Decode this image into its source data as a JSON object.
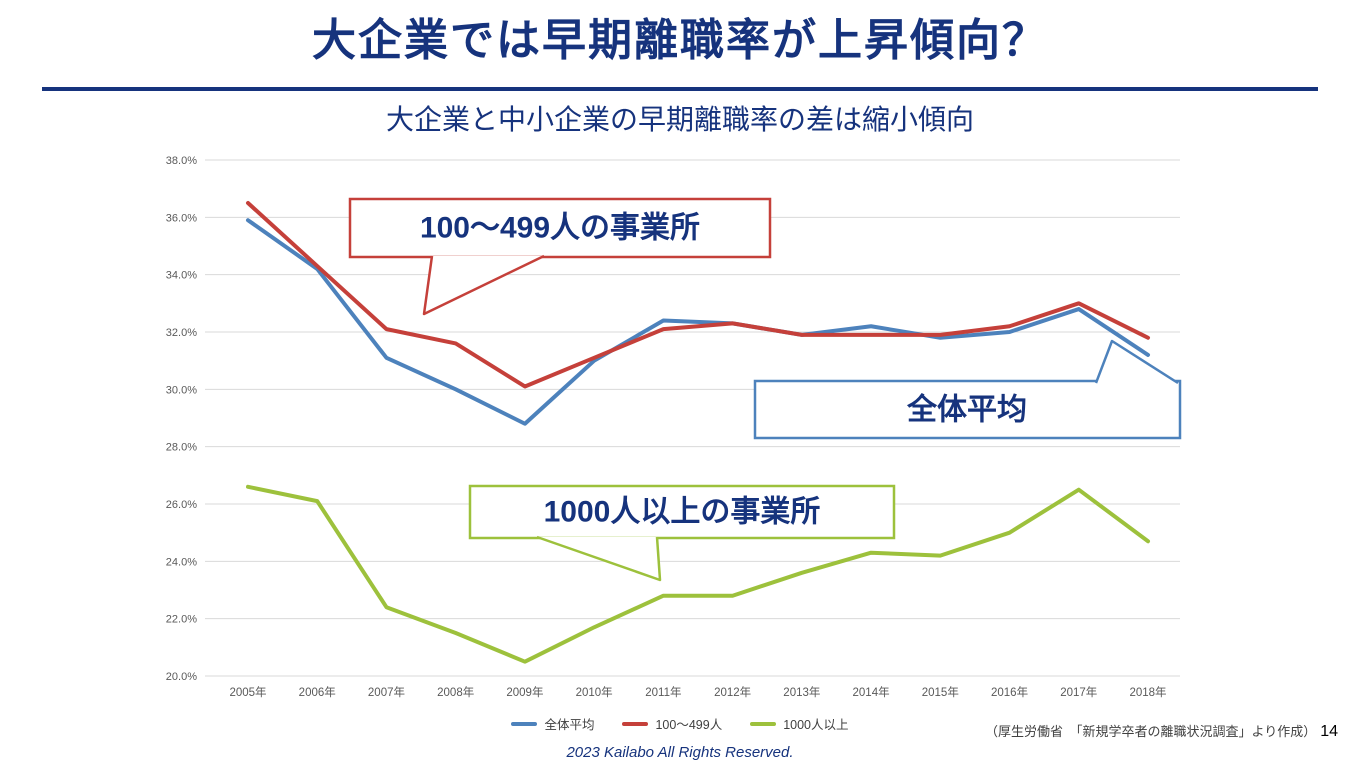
{
  "slide": {
    "title": "大企業では早期離職率が上昇傾向？",
    "subtitle": "大企業と中小企業の早期離職率の差は縮小傾向",
    "footer": {
      "source": "（厚生労働省　「新規学卒者の離職状況調査」より作成）",
      "page_number": "14",
      "copyright": "2023   Kailabo All Rights Reserved."
    }
  },
  "colors": {
    "navy": "#16337d",
    "blue": "#4d82bc",
    "red": "#c5403a",
    "green": "#9dc13c",
    "grid": "#d9d9d9",
    "axis_text": "#595959",
    "callout_fill": "#ffffff"
  },
  "chart_data": {
    "type": "line",
    "title": "",
    "xlabel": "",
    "ylabel": "",
    "ylim": [
      20.0,
      38.0
    ],
    "y_step": 2.0,
    "unit": "%",
    "grid": true,
    "legend_position": "bottom",
    "y_ticks": [
      "38.0%",
      "36.0%",
      "34.0%",
      "32.0%",
      "30.0%",
      "28.0%",
      "26.0%",
      "24.0%",
      "22.0%",
      "20.0%"
    ],
    "categories": [
      "2005年",
      "2006年",
      "2007年",
      "2008年",
      "2009年",
      "2010年",
      "2011年",
      "2012年",
      "2013年",
      "2014年",
      "2015年",
      "2016年",
      "2017年",
      "2018年"
    ],
    "series": [
      {
        "id": "overall",
        "name": "全体平均",
        "color_key": "blue",
        "values": [
          35.9,
          34.2,
          31.1,
          30.0,
          28.8,
          31.0,
          32.4,
          32.3,
          31.9,
          32.2,
          31.8,
          32.0,
          32.8,
          31.2
        ]
      },
      {
        "id": "mid-size",
        "name": "100〜499人",
        "color_key": "red",
        "values": [
          36.5,
          34.3,
          32.1,
          31.6,
          30.1,
          31.1,
          32.1,
          32.3,
          31.9,
          31.9,
          31.9,
          32.2,
          33.0,
          31.8
        ]
      },
      {
        "id": "large",
        "name": "1000人以上",
        "color_key": "green",
        "values": [
          26.6,
          26.1,
          22.4,
          21.5,
          20.5,
          21.7,
          22.8,
          22.8,
          23.6,
          24.3,
          24.2,
          25.0,
          26.5,
          24.7
        ]
      }
    ],
    "annotations": [
      {
        "id": "callout-mid-size",
        "label": "100〜499人の事業所",
        "color_key": "red"
      },
      {
        "id": "callout-overall",
        "label": "全体平均",
        "color_key": "blue"
      },
      {
        "id": "callout-large",
        "label": "1000人以上の事業所",
        "color_key": "green"
      }
    ]
  }
}
